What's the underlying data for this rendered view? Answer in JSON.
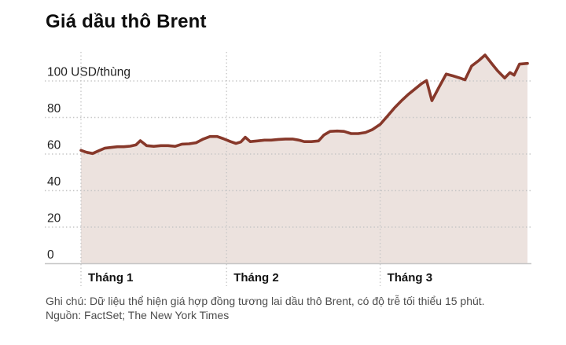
{
  "chart": {
    "title": "Giá dầu thô Brent",
    "note": "Ghi chú: Dữ liệu thể hiện giá hợp đồng tương lai dầu thô Brent, có độ trễ tối thiểu 15 phút.",
    "source": "Nguồn: FactSet; The New York Times"
  },
  "chart_data": {
    "type": "area",
    "title": "Giá dầu thô Brent",
    "ylabel_unit": "USD/thùng",
    "y_ticks": [
      0,
      20,
      40,
      60,
      80,
      100
    ],
    "ylim": [
      0,
      116
    ],
    "x_ticks": [
      {
        "label": "Tháng 1",
        "pos": 0.0
      },
      {
        "label": "Tháng 2",
        "pos": 0.326
      },
      {
        "label": "Tháng 3",
        "pos": 0.67
      }
    ],
    "grid": "dotted horizontal gridlines every 20, dotted vertical month ticks, solid zero baseline",
    "legend": "none",
    "series": [
      {
        "name": "Brent",
        "points": [
          [
            0.0,
            62.0
          ],
          [
            0.012,
            61.0
          ],
          [
            0.026,
            60.3
          ],
          [
            0.04,
            61.8
          ],
          [
            0.053,
            63.2
          ],
          [
            0.068,
            63.6
          ],
          [
            0.082,
            64.0
          ],
          [
            0.096,
            64.0
          ],
          [
            0.11,
            64.3
          ],
          [
            0.123,
            65.0
          ],
          [
            0.133,
            67.3
          ],
          [
            0.147,
            64.6
          ],
          [
            0.163,
            64.2
          ],
          [
            0.179,
            64.6
          ],
          [
            0.195,
            64.6
          ],
          [
            0.211,
            64.2
          ],
          [
            0.226,
            65.4
          ],
          [
            0.242,
            65.6
          ],
          [
            0.258,
            66.2
          ],
          [
            0.274,
            68.2
          ],
          [
            0.289,
            69.6
          ],
          [
            0.305,
            69.6
          ],
          [
            0.319,
            68.4
          ],
          [
            0.335,
            66.8
          ],
          [
            0.347,
            65.8
          ],
          [
            0.358,
            66.6
          ],
          [
            0.368,
            69.2
          ],
          [
            0.379,
            66.8
          ],
          [
            0.395,
            67.2
          ],
          [
            0.411,
            67.6
          ],
          [
            0.426,
            67.6
          ],
          [
            0.442,
            68.0
          ],
          [
            0.458,
            68.2
          ],
          [
            0.474,
            68.2
          ],
          [
            0.488,
            67.6
          ],
          [
            0.5,
            66.8
          ],
          [
            0.516,
            66.8
          ],
          [
            0.532,
            67.2
          ],
          [
            0.544,
            70.4
          ],
          [
            0.558,
            72.4
          ],
          [
            0.574,
            72.6
          ],
          [
            0.589,
            72.4
          ],
          [
            0.605,
            71.2
          ],
          [
            0.621,
            71.2
          ],
          [
            0.637,
            71.8
          ],
          [
            0.653,
            73.4
          ],
          [
            0.67,
            76.2
          ],
          [
            0.686,
            80.6
          ],
          [
            0.702,
            85.2
          ],
          [
            0.718,
            89.2
          ],
          [
            0.733,
            92.6
          ],
          [
            0.749,
            95.8
          ],
          [
            0.763,
            98.6
          ],
          [
            0.774,
            100.2
          ],
          [
            0.786,
            89.2
          ],
          [
            0.802,
            96.6
          ],
          [
            0.818,
            103.8
          ],
          [
            0.833,
            102.8
          ],
          [
            0.849,
            101.6
          ],
          [
            0.86,
            100.6
          ],
          [
            0.875,
            108.2
          ],
          [
            0.891,
            111.2
          ],
          [
            0.905,
            114.2
          ],
          [
            0.921,
            109.2
          ],
          [
            0.933,
            105.6
          ],
          [
            0.949,
            101.6
          ],
          [
            0.961,
            104.6
          ],
          [
            0.97,
            103.2
          ],
          [
            0.982,
            109.2
          ],
          [
            1.0,
            109.6
          ]
        ]
      }
    ],
    "colors": {
      "line": "#87382a",
      "fill": "#ece2de",
      "grid": "#c6c6c6",
      "baseline": "#c6c6c6",
      "axis_label": "#1f1f1f",
      "month_label": "#121212",
      "title": "#0d0d0d",
      "note": "#4d4d4d"
    }
  }
}
